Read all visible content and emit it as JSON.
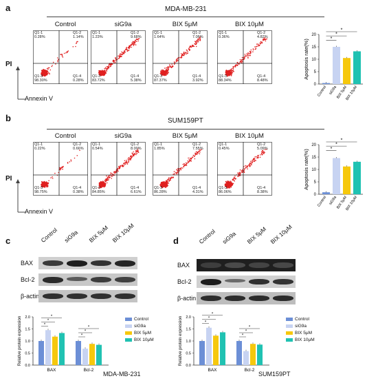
{
  "panels": {
    "a": {
      "letter": "a",
      "cell_line": "MDA-MB-231",
      "conditions": [
        {
          "name": "Control",
          "q1_1": "Q1-1\n0.28%",
          "q1_2": "Q1-2\n1.14%",
          "q1_3": "Q1-3\n98.30%",
          "q1_4": "Q1-4\n0.28%"
        },
        {
          "name": "siG9a",
          "q1_1": "Q1-1\n1.23%",
          "q1_2": "Q1-2\n9.68%",
          "q1_3": "Q1-3\n83.72%",
          "q1_4": "Q1-4\n5.38%"
        },
        {
          "name": "BIX 5μM",
          "q1_1": "Q1-1\n1.64%",
          "q1_2": "Q1-2\n7.06%",
          "q1_3": "Q1-3\n87.37%",
          "q1_4": "Q1-4\n3.92%"
        },
        {
          "name": "BIX 10μM",
          "q1_1": "Q1-1\n0.36%",
          "q1_2": "Q1-2\n4.82%",
          "q1_3": "Q1-3\n88.34%",
          "q1_4": "Q1-4\n8.48%"
        }
      ],
      "yaxis_label": "PI",
      "xaxis_label": "Annexin V",
      "bar_ylabel": "Apoptosis rate(%)",
      "bar_ticks": [
        "0",
        "5",
        "10",
        "15",
        "20"
      ],
      "bar_categories": [
        "Control",
        "siG9a",
        "BIX 5μM",
        "BIX 10μM"
      ],
      "bar_values": [
        0.4,
        15.0,
        10.5,
        13.2
      ],
      "star": "*"
    },
    "b": {
      "letter": "b",
      "cell_line": "SUM159PT",
      "conditions": [
        {
          "name": "Control",
          "q1_1": "Q1-1\n0.22%",
          "q1_2": "Q1-2\n0.66%",
          "q1_3": "Q1-3\n98.75%",
          "q1_4": "Q1-4\n0.38%"
        },
        {
          "name": "siG9a",
          "q1_1": "Q1-1\n0.54%",
          "q1_2": "Q1-2\n8.00%",
          "q1_3": "Q1-3\n84.85%",
          "q1_4": "Q1-4\n6.61%"
        },
        {
          "name": "BIX 5μM",
          "q1_1": "Q1-1\n1.85%",
          "q1_2": "Q1-2\n7.55%",
          "q1_3": "Q1-3\n86.28%",
          "q1_4": "Q1-4\n4.31%"
        },
        {
          "name": "BIX 10μM",
          "q1_1": "Q1-1\n0.45%",
          "q1_2": "Q1-2\n5.09%",
          "q1_3": "Q1-3\n86.06%",
          "q1_4": "Q1-4\n8.38%"
        }
      ],
      "yaxis_label": "PI",
      "xaxis_label": "Annexin V",
      "bar_ylabel": "Apoptosis rate(%)",
      "bar_ticks": [
        "0",
        "5",
        "10",
        "15",
        "20"
      ],
      "bar_categories": [
        "Control",
        "siG9a",
        "BIX 5μM",
        "BIX 10μM"
      ],
      "bar_values": [
        0.8,
        14.6,
        11.2,
        13.1
      ],
      "star": "*"
    },
    "c": {
      "letter": "c",
      "lanes": [
        "Control",
        "siG9a",
        "BIX 5μM",
        "BIX 10μM"
      ],
      "rows": [
        "BAX",
        "Bcl-2",
        "β-actin"
      ],
      "ylabel": "Relative protein expression",
      "ticks": [
        "0.0",
        "0.5",
        "1.0",
        "1.5",
        "2.0"
      ],
      "groups": [
        "BAX",
        "Bcl-2"
      ],
      "caption": "MDA-MB-231",
      "legend": [
        "Control",
        "siG9a",
        "BIX 5μM",
        "BIX 10μM"
      ],
      "star": "*"
    },
    "d": {
      "letter": "d",
      "lanes": [
        "Control",
        "siG9a",
        "BIX 5μM",
        "BIX 10μM"
      ],
      "rows": [
        "BAX",
        "Bcl-2",
        "β-actin"
      ],
      "ylabel": "Relative protein expression",
      "ticks": [
        "0.0",
        "0.5",
        "1.0",
        "1.5",
        "2.0"
      ],
      "groups": [
        "BAX",
        "Bcl-2"
      ],
      "caption": "SUM159PT",
      "legend": [
        "Control",
        "siG9a",
        "BIX 5μM",
        "BIX 10μM"
      ],
      "star": "*"
    }
  },
  "colors": {
    "control": "#6c8fd6",
    "siG9a": "#c7d3f2",
    "bix5": "#f6c80c",
    "bix10": "#20c2b2",
    "dots": "#e02020"
  },
  "chart_data": [
    {
      "type": "bar",
      "categories": [
        "Control",
        "siG9a",
        "BIX 5μM",
        "BIX 10μM"
      ],
      "values": [
        0.4,
        15.0,
        10.5,
        13.2
      ],
      "ylabel": "Apoptosis rate(%)",
      "ylim": [
        0,
        20
      ]
    },
    {
      "type": "bar",
      "categories": [
        "Control",
        "siG9a",
        "BIX 5μM",
        "BIX 10μM"
      ],
      "values": [
        0.8,
        14.6,
        11.2,
        13.1
      ],
      "ylabel": "Apoptosis rate(%)",
      "ylim": [
        0,
        20
      ]
    },
    {
      "type": "bar",
      "categories": [
        "BAX",
        "Bcl-2"
      ],
      "series": [
        {
          "name": "Control",
          "values": [
            1.0,
            1.0
          ]
        },
        {
          "name": "siG9a",
          "values": [
            1.45,
            0.68
          ]
        },
        {
          "name": "BIX 5μM",
          "values": [
            1.18,
            0.88
          ]
        },
        {
          "name": "BIX 10μM",
          "values": [
            1.33,
            0.84
          ]
        }
      ],
      "ylabel": "Relative protein expression",
      "xlabel": "MDA-MB-231",
      "ylim": [
        0,
        2
      ]
    },
    {
      "type": "bar",
      "categories": [
        "BAX",
        "Bcl-2"
      ],
      "series": [
        {
          "name": "Control",
          "values": [
            1.0,
            1.0
          ]
        },
        {
          "name": "siG9a",
          "values": [
            1.55,
            0.58
          ]
        },
        {
          "name": "BIX 5μM",
          "values": [
            1.22,
            0.88
          ]
        },
        {
          "name": "BIX 10μM",
          "values": [
            1.36,
            0.85
          ]
        }
      ],
      "ylabel": "Relative protein expression",
      "xlabel": "SUM159PT",
      "ylim": [
        0,
        2
      ]
    }
  ]
}
